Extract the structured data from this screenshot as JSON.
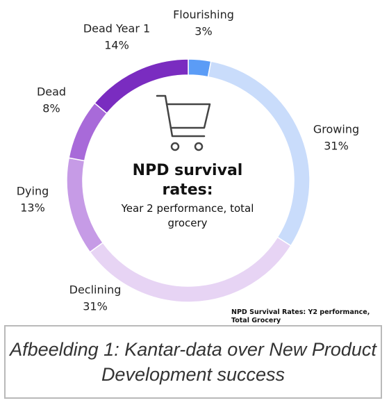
{
  "chart_data": {
    "type": "donut",
    "title": "NPD survival rates:",
    "subtitle": "Year 2 performance, total grocery",
    "note": "NPD Survival Rates: Y2 performance, Total Grocery",
    "categories": [
      "Flourishing",
      "Growing",
      "Declining",
      "Dying",
      "Dead",
      "Dead Year 1"
    ],
    "values": [
      3,
      31,
      31,
      13,
      8,
      14
    ],
    "value_labels": [
      "3%",
      "31%",
      "31%",
      "13%",
      "8%",
      "14%"
    ],
    "colors": [
      "#5b9cf6",
      "#c9dcfb",
      "#e7d4f4",
      "#c69be6",
      "#a86ad9",
      "#7a2cc0"
    ]
  },
  "caption": "Afbeelding 1: Kantar-data over New Product Development success"
}
